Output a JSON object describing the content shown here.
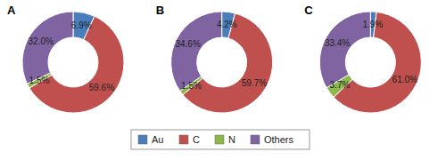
{
  "chart_data": [
    {
      "type": "pie",
      "title": "A",
      "categories": [
        "Au",
        "C",
        "N",
        "Others"
      ],
      "values": [
        6.9,
        59.6,
        1.5,
        32.0
      ],
      "value_labels": [
        "6.9%",
        "59.6%",
        "1.5%",
        "32.0%"
      ],
      "colors": [
        "#4a7ebb",
        "#c0504d",
        "#8cb84a",
        "#8064a2"
      ],
      "data_labels": true,
      "legend": "bottom"
    },
    {
      "type": "pie",
      "title": "B",
      "categories": [
        "Au",
        "C",
        "N",
        "Others"
      ],
      "values": [
        4.2,
        59.7,
        1.5,
        34.6
      ],
      "value_labels": [
        "4.2%",
        "59.7%",
        "1.5%",
        "34.6%"
      ],
      "colors": [
        "#4a7ebb",
        "#c0504d",
        "#8cb84a",
        "#8064a2"
      ],
      "data_labels": true
    },
    {
      "type": "pie",
      "title": "C",
      "categories": [
        "Au",
        "C",
        "N",
        "Others"
      ],
      "values": [
        1.9,
        61.0,
        3.7,
        33.4
      ],
      "value_labels": [
        "1.9%",
        "61.0%",
        "3.7%",
        "33.4%"
      ],
      "colors": [
        "#4a7ebb",
        "#c0504d",
        "#8cb84a",
        "#8064a2"
      ],
      "data_labels": true
    }
  ]
}
